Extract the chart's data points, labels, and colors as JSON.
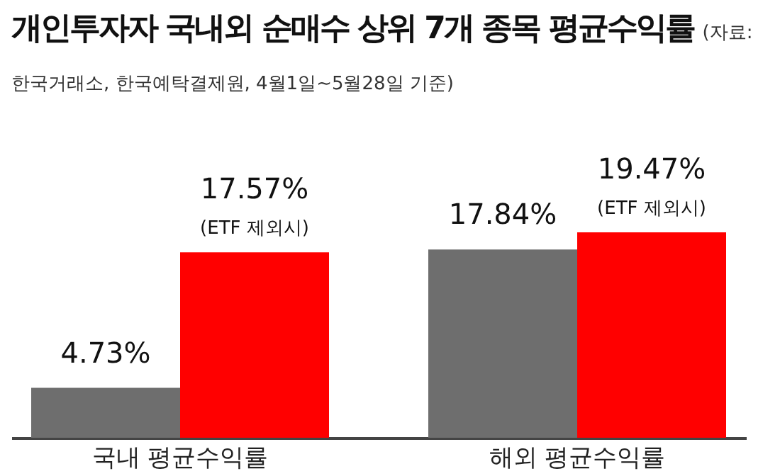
{
  "chart_data": {
    "type": "bar",
    "title": "개인투자자 국내외 순매수 상위 7개 종목 평균수익률",
    "subtitle": "(자료: 한국거래소, 한국예탁결제원, 4월1일~5월28일 기준)",
    "categories": [
      "국내 평균수익률",
      "해외 평균수익률"
    ],
    "series": [
      {
        "color": "#6e6e6e",
        "values": [
          4.73,
          17.84
        ],
        "value_labels": [
          "4.73%",
          "17.84%"
        ]
      },
      {
        "color": "#ff0000",
        "values": [
          17.57,
          19.47
        ],
        "value_labels": [
          "17.57%",
          "19.47%"
        ]
      }
    ],
    "annotations": [
      {
        "text": "(ETF 제외시)",
        "x": "국내 평균수익률",
        "y": 17.57
      },
      {
        "text": "(ETF 제외시)",
        "x": "해외 평균수익률",
        "y": 19.47
      }
    ]
  }
}
